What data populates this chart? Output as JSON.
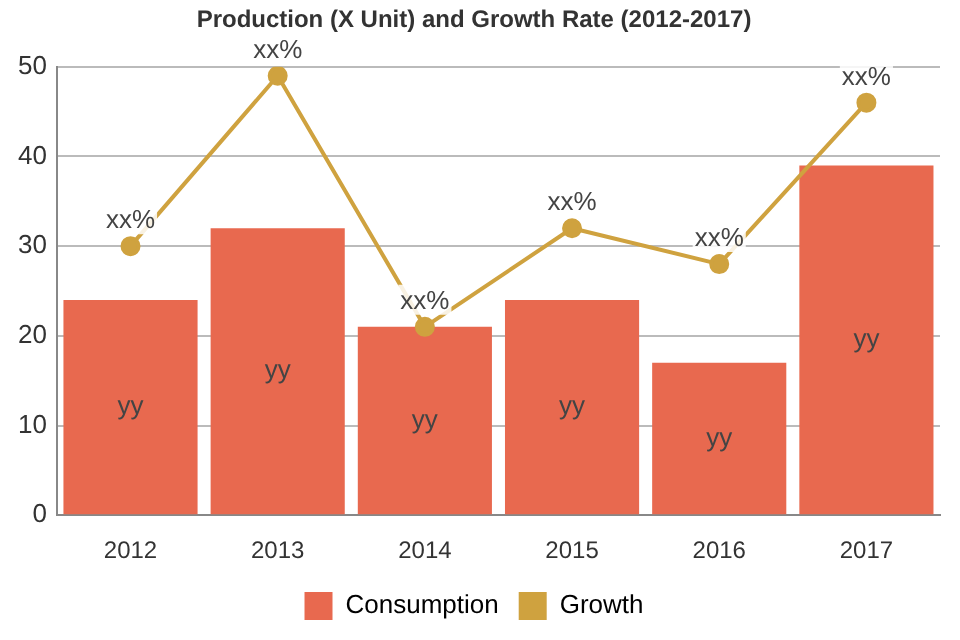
{
  "chart_data": {
    "type": "bar",
    "title": "Production (X Unit) and Growth Rate (2012-2017)",
    "categories": [
      "2012",
      "2013",
      "2014",
      "2015",
      "2016",
      "2017"
    ],
    "series": [
      {
        "name": "Consumption",
        "color": "#e8694f",
        "values": [
          24,
          32,
          21,
          24,
          17,
          39
        ],
        "value_labels": [
          "yy",
          "yy",
          "yy",
          "yy",
          "yy",
          "yy"
        ]
      },
      {
        "name": "Growth",
        "type": "line",
        "color": "#cfa23f",
        "values": [
          30,
          49,
          21,
          32,
          28,
          46
        ],
        "value_labels": [
          "xx%",
          "xx%",
          "xx%",
          "xx%",
          "xx%",
          "xx%"
        ]
      }
    ],
    "ylim": [
      0,
      50
    ],
    "yticks": [
      0,
      10,
      20,
      30,
      40,
      50
    ],
    "grid": "y",
    "legend": "bottom",
    "marker": "circle"
  }
}
